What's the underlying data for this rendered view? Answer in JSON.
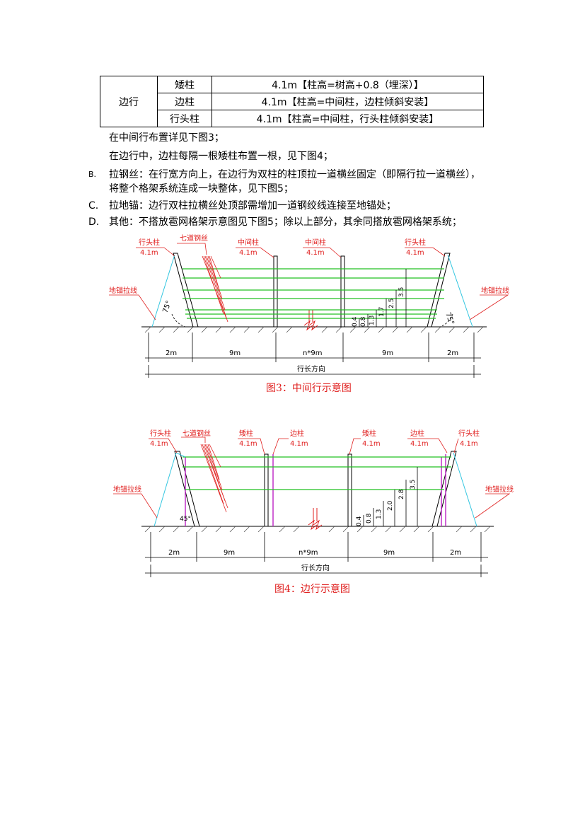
{
  "table": {
    "group_label": "边行",
    "rows": [
      {
        "name": "矮柱",
        "value": "4.1m【柱高=树高+0.8（埋深）】"
      },
      {
        "name": "边柱",
        "value": "4.1m【柱高=中间柱，边柱倾斜安装】"
      },
      {
        "name": "行头柱",
        "value": "4.1m【柱高=中间柱，行头柱倾斜安装】"
      }
    ]
  },
  "paragraphs": {
    "p1": "在中间行布置详见下图3；",
    "p2": "在边行中，边柱每隔一根矮柱布置一根，见下图4；",
    "itemB_marker": "B.",
    "itemB_line1": "拉钢丝：在行宽方向上，在边行为双柱的柱顶拉一道横丝固定（即隔行拉一道横丝），",
    "itemB_line2": "将整个格架系统连成一块整体，见下图5；",
    "itemC_marker": "C.",
    "itemC": "拉地锚：边行双柱拉横丝处顶部需增加一道钢绞线连接至地锚处；",
    "itemD_marker": "D.",
    "itemD": "其他：不搭放雹网格架示意图见下图5；除以上部分，其余同搭放雹网格架系统；"
  },
  "fig3": {
    "caption": "图3：中间行示意图",
    "label_row_post": "行头柱",
    "label_row_post_h": "4.1m",
    "label_wires": "七道钢丝",
    "label_mid1": "中间柱",
    "label_mid1_h": "4.1m",
    "label_mid2": "中间柱",
    "label_mid2_h": "4.1m",
    "label_head_right": "行头柱",
    "label_head_right_h": "4.1m",
    "label_anchor_left": "地锚拉线",
    "label_anchor_right": "地锚拉线",
    "angle_left": "75°",
    "angle_right": "75°",
    "dims": [
      "2m",
      "9m",
      "n*9m",
      "9m",
      "2m"
    ],
    "direction": "行长方向",
    "heights": [
      "0.4",
      "0.8",
      "1.3",
      "1.7",
      "2.5",
      "3.5"
    ]
  },
  "fig4": {
    "caption": "图4：边行示意图",
    "label_head_left": "行头柱",
    "label_head_left_h": "4.1m",
    "label_wires": "七道钢丝",
    "label_short": "矮柱",
    "label_short_h": "4.1m",
    "label_edge": "边柱",
    "label_edge_h": "4.1m",
    "label_short2": "矮柱",
    "label_short2_h": "4.1m",
    "label_edge2": "边柱",
    "label_edge2_h": "4.1m",
    "label_head_right": "行头柱",
    "label_head_right_h": "4.1m",
    "label_anchor_left": "地锚拉线",
    "label_anchor_right": "地锚拉线",
    "angle_left": "45°",
    "dims": [
      "2m",
      "9m",
      "n*9m",
      "9m",
      "2m"
    ],
    "direction": "行长方向",
    "heights": [
      "0.4",
      "0.8",
      "1.3",
      "2.0",
      "2.8",
      "3.5"
    ]
  },
  "colors": {
    "red": "#e0201f",
    "green": "#22c022",
    "cyan": "#33c6e0",
    "magenta": "#c030c8"
  }
}
